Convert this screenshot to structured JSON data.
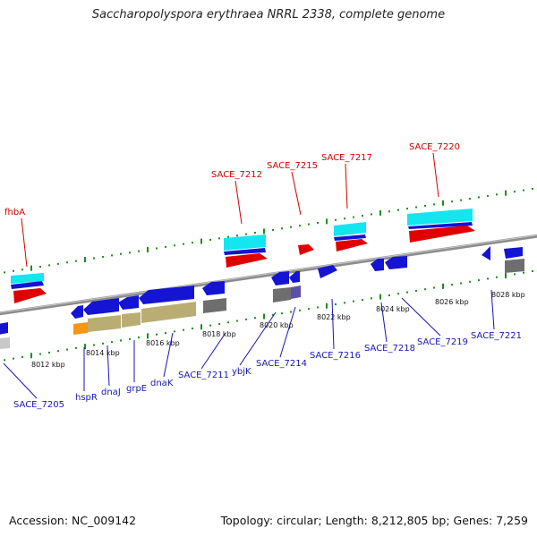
{
  "title": "Saccharopolyspora erythraea NRRL 2338, complete genome",
  "footer": {
    "accession": "Accession: NC_009142",
    "stats": "Topology: circular; Length: 8,212,805 bp; Genes: 7,259"
  },
  "colors": {
    "backbone": "#8c8c8c",
    "tick": "#1e8c1e",
    "forward_label": "#d20000",
    "reverse_label": "#1616b4",
    "gene_blue": "#1414d2",
    "cds_red": "#e10000",
    "cyan": "#14e6f0",
    "olive": "#b9ad73",
    "gray": "#6e6e6e",
    "orange": "#f59614"
  },
  "forward_labels": [
    "fhbA",
    "SACE_7212",
    "SACE_7215",
    "SACE_7217",
    "SACE_7220"
  ],
  "reverse_labels": [
    "SACE_7205",
    "hspR",
    "dnaJ",
    "grpE",
    "dnaK",
    "SACE_7211",
    "ybjK",
    "SACE_7214",
    "SACE_7216",
    "SACE_7218",
    "SACE_7219",
    "SACE_7221"
  ],
  "kbp_labels": [
    "8012 kbp",
    "8014 kbp",
    "8016 kbp",
    "8018 kbp",
    "8020 kbp",
    "8022 kbp",
    "8024 kbp",
    "8026 kbp",
    "8028 kbp"
  ]
}
